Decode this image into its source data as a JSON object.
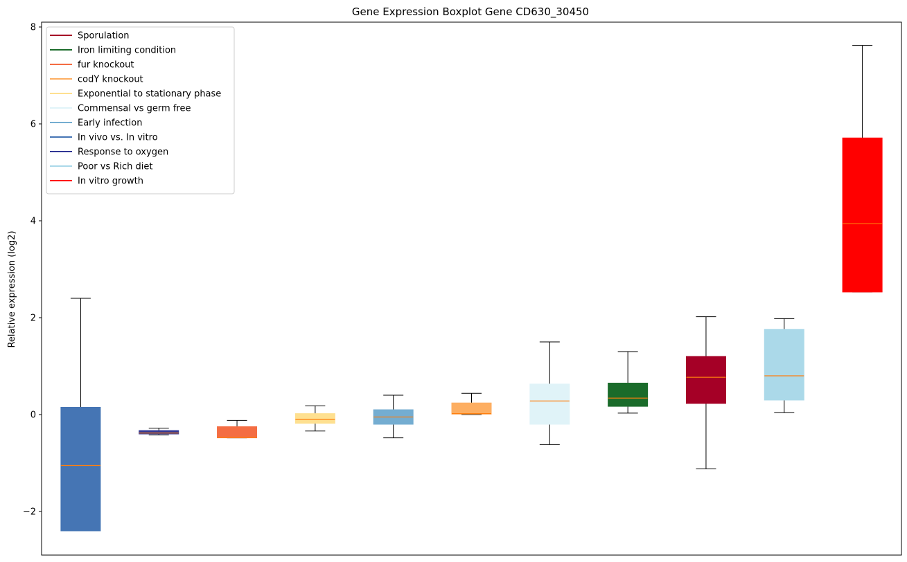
{
  "chart_data": {
    "type": "boxplot",
    "title": "Gene Expression Boxplot Gene CD630_30450",
    "xlabel": "",
    "ylabel": "Relative expression (log2)",
    "ylim": [
      -2.9,
      8.1
    ],
    "yticks": [
      -2,
      0,
      2,
      4,
      6,
      8
    ],
    "ytick_labels": [
      "−2",
      "0",
      "2",
      "4",
      "6",
      "8"
    ],
    "legend_position": "top-left",
    "median_color": "#ff7f0e",
    "legend": [
      {
        "label": "Sporulation",
        "color": "#a50026"
      },
      {
        "label": "Iron limiting condition",
        "color": "#1a6b2a"
      },
      {
        "label": "fur knockout",
        "color": "#f46d43"
      },
      {
        "label": "codY knockout",
        "color": "#fdae61"
      },
      {
        "label": "Exponential to stationary phase",
        "color": "#fee090"
      },
      {
        "label": "Commensal vs germ free",
        "color": "#e0f3f8"
      },
      {
        "label": "Early infection",
        "color": "#74add1"
      },
      {
        "label": "In vivo vs. In vitro",
        "color": "#4575b4"
      },
      {
        "label": "Response to oxygen",
        "color": "#313695"
      },
      {
        "label": "Poor vs Rich diet",
        "color": "#abd9e9"
      },
      {
        "label": "In vitro growth",
        "color": "#ff0000"
      }
    ],
    "boxes": [
      {
        "name": "In vivo vs. In vitro",
        "color": "#4575b4",
        "whislo": -2.4,
        "q1": -2.4,
        "med": -1.05,
        "q3": 0.15,
        "whishi": 2.4
      },
      {
        "name": "Response to oxygen",
        "color": "#313695",
        "whislo": -0.42,
        "q1": -0.4,
        "med": -0.38,
        "q3": -0.33,
        "whishi": -0.28
      },
      {
        "name": "fur knockout",
        "color": "#f46d43",
        "whislo": -0.48,
        "q1": -0.48,
        "med": -0.47,
        "q3": -0.25,
        "whishi": -0.12
      },
      {
        "name": "Exponential to stationary phase",
        "color": "#fee090",
        "whislo": -0.34,
        "q1": -0.18,
        "med": -0.1,
        "q3": 0.02,
        "whishi": 0.18
      },
      {
        "name": "Early infection",
        "color": "#74add1",
        "whislo": -0.48,
        "q1": -0.2,
        "med": -0.05,
        "q3": 0.1,
        "whishi": 0.4
      },
      {
        "name": "codY knockout",
        "color": "#fdae61",
        "whislo": 0.0,
        "q1": 0.01,
        "med": 0.02,
        "q3": 0.24,
        "whishi": 0.44
      },
      {
        "name": "Commensal vs germ free",
        "color": "#e0f3f8",
        "whislo": -0.62,
        "q1": -0.2,
        "med": 0.28,
        "q3": 0.63,
        "whishi": 1.5
      },
      {
        "name": "Iron limiting condition",
        "color": "#1a6b2a",
        "whislo": 0.03,
        "q1": 0.17,
        "med": 0.34,
        "q3": 0.65,
        "whishi": 1.3
      },
      {
        "name": "Sporulation",
        "color": "#a50026",
        "whislo": -1.12,
        "q1": 0.23,
        "med": 0.77,
        "q3": 1.2,
        "whishi": 2.02
      },
      {
        "name": "Poor vs Rich diet",
        "color": "#abd9e9",
        "whislo": 0.04,
        "q1": 0.3,
        "med": 0.8,
        "q3": 1.76,
        "whishi": 1.98
      },
      {
        "name": "In vitro growth",
        "color": "#ff0000",
        "whislo": 2.53,
        "q1": 2.53,
        "med": 3.94,
        "q3": 5.71,
        "whishi": 7.62
      }
    ]
  }
}
